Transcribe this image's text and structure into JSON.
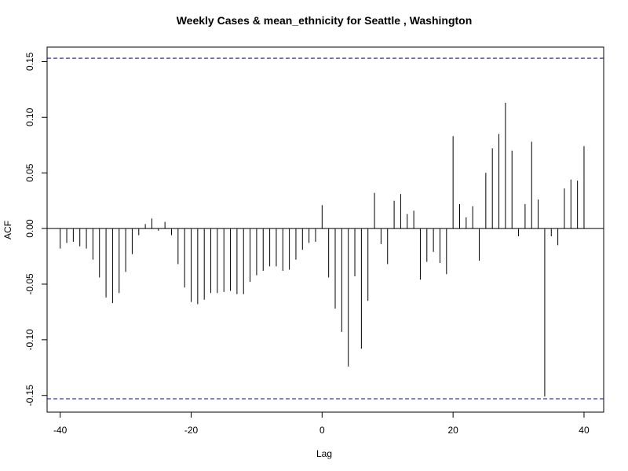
{
  "chart_data": {
    "type": "bar",
    "title": "Weekly Cases & mean_ethnicity for Seattle , Washington",
    "xlabel": "Lag",
    "ylabel": "ACF",
    "xlim": [
      -42,
      43
    ],
    "ylim": [
      -0.165,
      0.163
    ],
    "x_ticks": [
      -40,
      -20,
      0,
      20,
      40
    ],
    "x_tick_labels": [
      "-40",
      "-20",
      "0",
      "20",
      "40"
    ],
    "y_ticks": [
      -0.15,
      -0.1,
      -0.05,
      0.0,
      0.05,
      0.1,
      0.15
    ],
    "y_tick_labels": [
      "-0.15",
      "-0.10",
      "-0.05",
      "0.00",
      "0.05",
      "0.10",
      "0.15"
    ],
    "confidence_bounds": [
      0.153,
      -0.153
    ],
    "confidence_color": "#0000cc",
    "bar_color": "#000000",
    "lags": [
      -40,
      -39,
      -38,
      -37,
      -36,
      -35,
      -34,
      -33,
      -32,
      -31,
      -30,
      -29,
      -28,
      -27,
      -26,
      -25,
      -24,
      -23,
      -22,
      -21,
      -20,
      -19,
      -18,
      -17,
      -16,
      -15,
      -14,
      -13,
      -12,
      -11,
      -10,
      -9,
      -8,
      -7,
      -6,
      -5,
      -4,
      -3,
      -2,
      -1,
      0,
      1,
      2,
      3,
      4,
      5,
      6,
      7,
      8,
      9,
      10,
      11,
      12,
      13,
      14,
      15,
      16,
      17,
      18,
      19,
      20,
      21,
      22,
      23,
      24,
      25,
      26,
      27,
      28,
      29,
      30,
      31,
      32,
      33,
      34,
      35,
      36,
      37,
      38,
      39,
      40
    ],
    "acf": [
      -0.018,
      -0.013,
      -0.012,
      -0.016,
      -0.018,
      -0.028,
      -0.044,
      -0.062,
      -0.067,
      -0.058,
      -0.039,
      -0.023,
      -0.006,
      0.004,
      0.009,
      -0.002,
      0.006,
      -0.006,
      -0.032,
      -0.053,
      -0.066,
      -0.068,
      -0.064,
      -0.058,
      -0.058,
      -0.057,
      -0.056,
      -0.059,
      -0.059,
      -0.048,
      -0.042,
      -0.038,
      -0.034,
      -0.034,
      -0.038,
      -0.037,
      -0.028,
      -0.019,
      -0.013,
      -0.012,
      0.021,
      -0.044,
      -0.072,
      -0.093,
      -0.124,
      -0.043,
      -0.108,
      -0.065,
      0.032,
      -0.014,
      -0.032,
      0.025,
      0.031,
      0.013,
      0.016,
      -0.046,
      -0.03,
      -0.021,
      -0.031,
      -0.041,
      0.083,
      0.022,
      0.01,
      0.02,
      -0.029,
      0.05,
      0.072,
      0.085,
      0.113,
      0.07,
      -0.007,
      0.022,
      0.078,
      0.026,
      -0.151,
      -0.007,
      -0.015,
      0.036,
      0.044,
      0.043,
      0.074
    ]
  }
}
